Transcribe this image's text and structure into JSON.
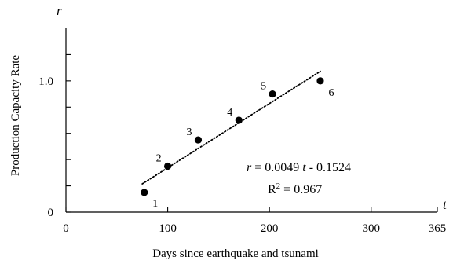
{
  "chart_data": {
    "type": "scatter",
    "xlabel": "Days since earthquake and tsunami",
    "ylabel": "Production Capacity Rate",
    "x_var": "t",
    "y_var": "r",
    "xlim": [
      0,
      365
    ],
    "ylim": [
      0,
      1.4
    ],
    "x_ticks": [
      0,
      100,
      200,
      300,
      365
    ],
    "x_tick_labels": [
      "0",
      "100",
      "200",
      "300",
      "365"
    ],
    "y_ticks": [
      0,
      1.0
    ],
    "y_tick_labels": [
      "0",
      "1.0"
    ],
    "y_minor_ticks": [
      0.2,
      0.4,
      0.6,
      0.8,
      1.2
    ],
    "grid": false,
    "points": [
      {
        "label": "1",
        "x": 77,
        "y": 0.15
      },
      {
        "label": "2",
        "x": 100,
        "y": 0.35
      },
      {
        "label": "3",
        "x": 130,
        "y": 0.55
      },
      {
        "label": "4",
        "x": 170,
        "y": 0.7
      },
      {
        "label": "5",
        "x": 203,
        "y": 0.9
      },
      {
        "label": "6",
        "x": 250,
        "y": 1.0
      }
    ],
    "trendline": {
      "style": "dotted",
      "slope": 0.0049,
      "intercept": -0.1524,
      "x_range": [
        75,
        250
      ]
    },
    "annotations": {
      "equation": {
        "var_r": "r",
        "op1": " = 0.0049 ",
        "var_t": "t",
        "op2": " - 0.1524"
      },
      "r_squared": {
        "base": "R",
        "sup": "2",
        "rest": " = 0.967"
      }
    }
  }
}
